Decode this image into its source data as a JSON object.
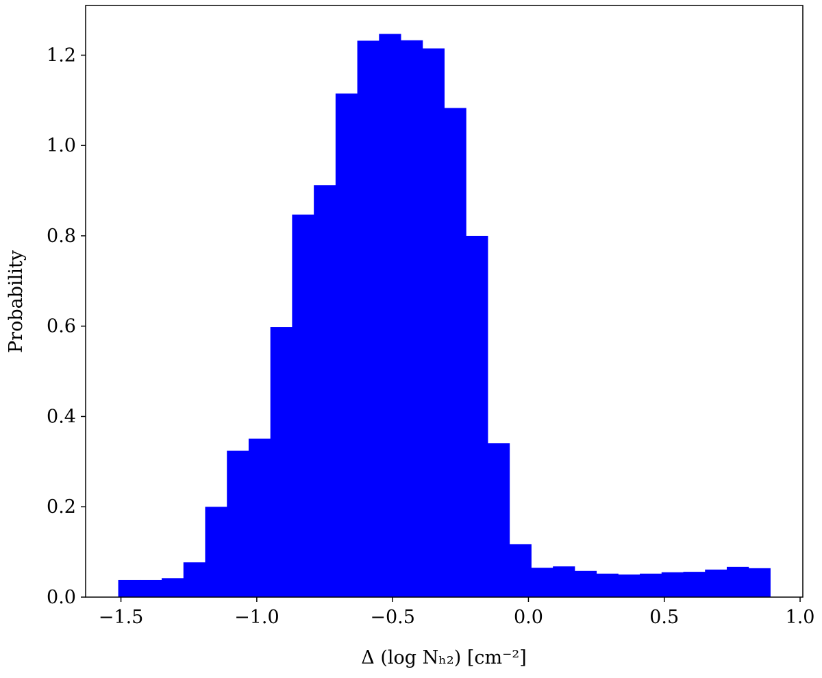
{
  "chart_data": {
    "type": "histogram",
    "xlabel": "Δ (log Nₕ₂) [cm⁻²]",
    "ylabel": "Probability",
    "bins": [
      -1.51,
      -1.43,
      -1.35,
      -1.27,
      -1.19,
      -1.11,
      -1.03,
      -0.95,
      -0.87,
      -0.79,
      -0.71,
      -0.63,
      -0.55,
      -0.47,
      -0.39,
      -0.31,
      -0.23,
      -0.15,
      -0.07,
      0.01,
      0.09,
      0.17,
      0.25,
      0.33,
      0.41,
      0.49,
      0.57,
      0.65,
      0.73,
      0.81,
      0.89
    ],
    "values": [
      0.038,
      0.038,
      0.042,
      0.077,
      0.2,
      0.324,
      0.351,
      0.598,
      0.847,
      0.912,
      1.115,
      1.232,
      1.247,
      1.233,
      1.215,
      1.083,
      0.8,
      0.341,
      0.117,
      0.065,
      0.068,
      0.058,
      0.052,
      0.05,
      0.052,
      0.055,
      0.056,
      0.061,
      0.067,
      0.064
    ],
    "color": "#0000ff",
    "xlim": [
      -1.63,
      1.01
    ],
    "ylim": [
      0,
      1.31
    ],
    "xticks": [
      {
        "value": -1.5,
        "label": "−1.5"
      },
      {
        "value": -1.0,
        "label": "−1.0"
      },
      {
        "value": -0.5,
        "label": "−0.5"
      },
      {
        "value": 0,
        "label": "0.0"
      },
      0.5,
      {
        "value": 1.0,
        "label": "1.0"
      }
    ],
    "yticks": [
      {
        "value": 0,
        "label": "0.0"
      },
      0.2,
      0.4,
      0.6,
      0.8,
      {
        "value": 1.0,
        "label": "1.0"
      },
      1.2
    ]
  }
}
